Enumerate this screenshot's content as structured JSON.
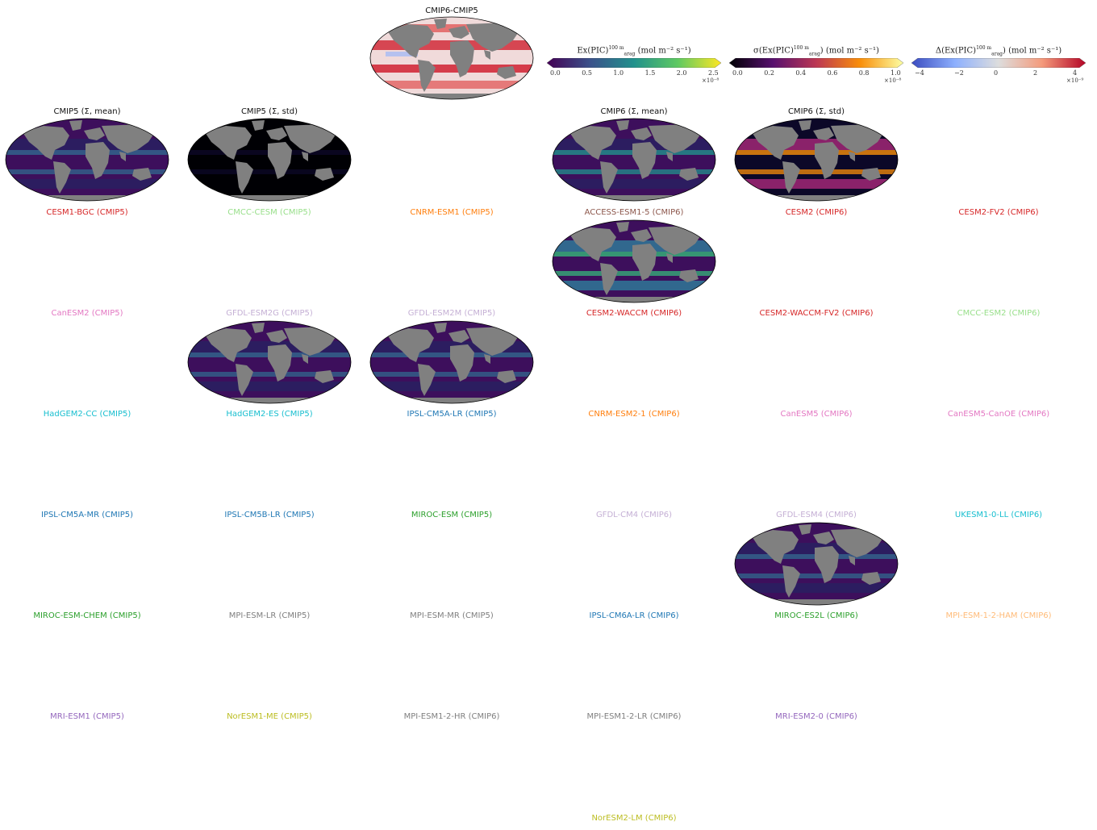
{
  "top_panel": {
    "title": "CMIP6-CMIP5"
  },
  "colorbars": [
    {
      "title": "Ex(PIC)",
      "sup": "100 m",
      "sub": "arag",
      "unit": " (mol m⁻² s⁻¹)",
      "ticks": [
        "0.0",
        "0.5",
        "1.0",
        "1.5",
        "2.0",
        "2.5"
      ],
      "multiplier": "×10⁻⁸",
      "colormap": "viridis"
    },
    {
      "title": "σ(Ex(PIC)",
      "sup": "100 m",
      "sub": "arag",
      "unit": ") (mol m⁻² s⁻¹)",
      "ticks": [
        "0.0",
        "0.2",
        "0.4",
        "0.6",
        "0.8",
        "1.0"
      ],
      "multiplier": "×10⁻⁸",
      "colormap": "inferno"
    },
    {
      "title": "Δ(Ex(PIC)",
      "sup": "100 m",
      "sub": "arag",
      "unit": ") (mol m⁻² s⁻¹)",
      "ticks": [
        "−4",
        "−2",
        "0",
        "2",
        "4"
      ],
      "multiplier": "×10⁻⁹",
      "colormap": "coolwarm"
    }
  ],
  "summary_panels": [
    {
      "title": "CMIP5 (Σ, mean)",
      "style": "mean"
    },
    {
      "title": "CMIP5 (Σ, std)",
      "style": "std-dark"
    },
    {
      "title": "CMIP6 (Σ, mean)",
      "style": "mean-bright"
    },
    {
      "title": "CMIP6 (Σ, std)",
      "style": "std"
    }
  ],
  "model_labels": [
    {
      "text": "CESM1-BGC (CMIP5)",
      "color": "#d62728"
    },
    {
      "text": "CMCC-CESM (CMIP5)",
      "color": "#98df8a"
    },
    {
      "text": "CNRM-ESM1 (CMIP5)",
      "color": "#ff7f0e"
    },
    {
      "text": "ACCESS-ESM1-5 (CMIP6)",
      "color": "#8c564b"
    },
    {
      "text": "CESM2 (CMIP6)",
      "color": "#d62728"
    },
    {
      "text": "CESM2-FV2 (CMIP6)",
      "color": "#d62728"
    },
    {
      "text": "CanESM2 (CMIP5)",
      "color": "#e377c2"
    },
    {
      "text": "GFDL-ESM2G (CMIP5)",
      "color": "#c5b0d5"
    },
    {
      "text": "GFDL-ESM2M (CMIP5)",
      "color": "#c5b0d5"
    },
    {
      "text": "CESM2-WACCM (CMIP6)",
      "color": "#d62728"
    },
    {
      "text": "CESM2-WACCM-FV2 (CMIP6)",
      "color": "#d62728"
    },
    {
      "text": "CMCC-ESM2 (CMIP6)",
      "color": "#98df8a"
    },
    {
      "text": "HadGEM2-CC (CMIP5)",
      "color": "#17becf"
    },
    {
      "text": "HadGEM2-ES (CMIP5)",
      "color": "#17becf"
    },
    {
      "text": "IPSL-CM5A-LR (CMIP5)",
      "color": "#1f77b4"
    },
    {
      "text": "CNRM-ESM2-1 (CMIP6)",
      "color": "#ff7f0e"
    },
    {
      "text": "CanESM5 (CMIP6)",
      "color": "#e377c2"
    },
    {
      "text": "CanESM5-CanOE (CMIP6)",
      "color": "#e377c2"
    },
    {
      "text": "IPSL-CM5A-MR (CMIP5)",
      "color": "#1f77b4"
    },
    {
      "text": "IPSL-CM5B-LR (CMIP5)",
      "color": "#1f77b4"
    },
    {
      "text": "MIROC-ESM (CMIP5)",
      "color": "#2ca02c"
    },
    {
      "text": "GFDL-CM4 (CMIP6)",
      "color": "#c5b0d5"
    },
    {
      "text": "GFDL-ESM4 (CMIP6)",
      "color": "#c5b0d5"
    },
    {
      "text": "UKESM1-0-LL (CMIP6)",
      "color": "#17becf"
    },
    {
      "text": "MIROC-ESM-CHEM (CMIP5)",
      "color": "#2ca02c"
    },
    {
      "text": "MPI-ESM-LR (CMIP5)",
      "color": "#7f7f7f"
    },
    {
      "text": "MPI-ESM-MR (CMIP5)",
      "color": "#7f7f7f"
    },
    {
      "text": "IPSL-CM6A-LR (CMIP6)",
      "color": "#1f77b4"
    },
    {
      "text": "MIROC-ES2L (CMIP6)",
      "color": "#2ca02c"
    },
    {
      "text": "MPI-ESM-1-2-HAM (CMIP6)",
      "color": "#ffbb78"
    },
    {
      "text": "MRI-ESM1 (CMIP5)",
      "color": "#9467bd"
    },
    {
      "text": "NorESM1-ME (CMIP5)",
      "color": "#bcbd22"
    },
    {
      "text": "MPI-ESM1-2-HR (CMIP6)",
      "color": "#7f7f7f"
    },
    {
      "text": "MPI-ESM1-2-LR (CMIP6)",
      "color": "#7f7f7f"
    },
    {
      "text": "MRI-ESM2-0 (CMIP6)",
      "color": "#9467bd"
    },
    {
      "text": "NorESM2-LM (CMIP6)",
      "color": "#bcbd22"
    }
  ],
  "model_maps": [
    {
      "model": "CESM2-WACCM (CMIP6)",
      "style": "bright"
    },
    {
      "model": "HadGEM2-ES (CMIP5)",
      "style": "mean"
    },
    {
      "model": "IPSL-CM5A-LR (CMIP5)",
      "style": "mean"
    },
    {
      "model": "MIROC-ES2L (CMIP6)",
      "style": "mean"
    }
  ],
  "colors": {
    "land": "#808080",
    "viridis_dark": "#440154",
    "viridis_mid": "#21918c",
    "viridis_high": "#fde725"
  }
}
